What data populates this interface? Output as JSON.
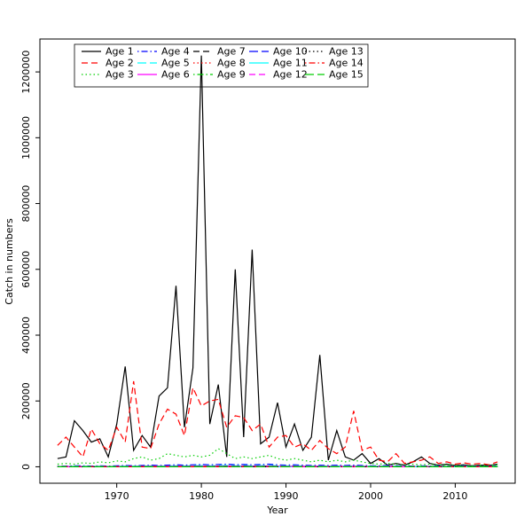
{
  "figure": {
    "background": "#ffffff"
  },
  "chart_data": {
    "type": "line",
    "title": "",
    "xlabel": "Year",
    "ylabel": "Catch in numbers",
    "xlim": [
      1963,
      2015
    ],
    "ylim": [
      0,
      1250000
    ],
    "xticks": [
      1970,
      1980,
      1990,
      2000,
      2010
    ],
    "yticks": [
      0,
      200000,
      400000,
      600000,
      800000,
      1000000,
      1200000
    ],
    "grid": false,
    "legend": {
      "position": "top-left",
      "columns": 5,
      "rows": 3
    },
    "x": [
      1963,
      1964,
      1965,
      1966,
      1967,
      1968,
      1969,
      1970,
      1971,
      1972,
      1973,
      1974,
      1975,
      1976,
      1977,
      1978,
      1979,
      1980,
      1981,
      1982,
      1983,
      1984,
      1985,
      1986,
      1987,
      1988,
      1989,
      1990,
      1991,
      1992,
      1993,
      1994,
      1995,
      1996,
      1997,
      1998,
      1999,
      2000,
      2001,
      2002,
      2003,
      2004,
      2005,
      2006,
      2007,
      2008,
      2009,
      2010,
      2011,
      2012,
      2013,
      2014,
      2015
    ],
    "series": [
      {
        "name": "Age 1",
        "color": "#000000",
        "linetype": "solid",
        "values": [
          25000,
          30000,
          140000,
          110000,
          75000,
          85000,
          30000,
          130000,
          305000,
          50000,
          95000,
          60000,
          215000,
          240000,
          550000,
          120000,
          300000,
          1250000,
          130000,
          250000,
          30000,
          600000,
          90000,
          660000,
          70000,
          90000,
          195000,
          60000,
          130000,
          50000,
          90000,
          340000,
          20000,
          110000,
          30000,
          20000,
          40000,
          10000,
          25000,
          5000,
          10000,
          5000,
          15000,
          30000,
          10000,
          5000,
          8000,
          4000,
          6000,
          3000,
          5000,
          4000,
          8000
        ]
      },
      {
        "name": "Age 2",
        "color": "#FF0000",
        "linetype": "dashed",
        "values": [
          65000,
          90000,
          60000,
          30000,
          115000,
          70000,
          50000,
          120000,
          75000,
          260000,
          60000,
          55000,
          130000,
          175000,
          160000,
          95000,
          240000,
          185000,
          200000,
          205000,
          120000,
          155000,
          150000,
          110000,
          130000,
          60000,
          90000,
          95000,
          60000,
          70000,
          50000,
          80000,
          55000,
          40000,
          60000,
          170000,
          50000,
          60000,
          20000,
          15000,
          40000,
          10000,
          15000,
          20000,
          30000,
          10000,
          15000,
          8000,
          12000,
          8000,
          10000,
          6000,
          15000
        ]
      },
      {
        "name": "Age 3",
        "color": "#00CD00",
        "linetype": "dotted",
        "values": [
          8000,
          10000,
          8000,
          12000,
          10000,
          15000,
          12000,
          18000,
          15000,
          25000,
          30000,
          20000,
          25000,
          40000,
          35000,
          30000,
          35000,
          30000,
          35000,
          55000,
          40000,
          25000,
          30000,
          25000,
          30000,
          35000,
          25000,
          20000,
          25000,
          20000,
          15000,
          20000,
          15000,
          20000,
          15000,
          20000,
          15000,
          10000,
          8000,
          10000,
          8000,
          6000,
          8000,
          6000,
          8000,
          5000,
          6000,
          4000,
          5000,
          4000,
          5000,
          4000,
          6000
        ]
      },
      {
        "name": "Age 4",
        "color": "#0000FF",
        "linetype": "dotdash",
        "values": [
          2000,
          2000,
          3000,
          3000,
          2000,
          3000,
          2000,
          3000,
          4000,
          3000,
          4000,
          5000,
          4000,
          5000,
          6000,
          5000,
          6000,
          7000,
          6000,
          7000,
          8000,
          6000,
          7000,
          6000,
          7000,
          8000,
          6000,
          5000,
          6000,
          5000,
          4000,
          5000,
          4000,
          5000,
          4000,
          5000,
          4000,
          3000,
          3000,
          4000,
          3000,
          3000,
          2000,
          3000,
          2000,
          3000,
          2000,
          2000,
          3000,
          2000,
          2000,
          2000,
          3000
        ]
      },
      {
        "name": "Age 5",
        "color": "#00FFFF",
        "linetype": "longdash",
        "values": [
          1000,
          1000,
          1500,
          1500,
          1000,
          1500,
          1000,
          1500,
          2000,
          1500,
          2000,
          2500,
          2000,
          2500,
          3000,
          2500,
          3000,
          3500,
          3000,
          3500,
          4000,
          3000,
          3500,
          3000,
          3500,
          4000,
          3000,
          2500,
          3000,
          2500,
          2000,
          2500,
          2000,
          2500,
          2000,
          2500,
          2000,
          1500,
          1500,
          2000,
          1500,
          1500,
          1000,
          1500,
          1000,
          1500,
          1000,
          1000,
          1500,
          1000,
          1000,
          1000,
          1500
        ]
      },
      {
        "name": "Age 6",
        "color": "#FF00FF",
        "linetype": "solid",
        "values": [
          800,
          800,
          1000,
          1000,
          800,
          1000,
          800,
          1000,
          1200,
          1000,
          1200,
          1500,
          1200,
          1500,
          1800,
          1500,
          1800,
          2000,
          1800,
          2000,
          2200,
          1800,
          2000,
          1800,
          2000,
          2200,
          1800,
          1500,
          1800,
          1500,
          1200,
          1500,
          1200,
          1500,
          1200,
          1500,
          1200,
          1000,
          1000,
          1200,
          1000,
          1000,
          800,
          1000,
          800,
          1000,
          800,
          800,
          1000,
          800,
          800,
          800,
          1000
        ]
      },
      {
        "name": "Age 7",
        "color": "#000000",
        "linetype": "dashed",
        "values": [
          500,
          500,
          700,
          700,
          500,
          700,
          500,
          700,
          800,
          700,
          800,
          1000,
          800,
          1000,
          1200,
          1000,
          1200,
          1400,
          1200,
          1400,
          1500,
          1200,
          1400,
          1200,
          1400,
          1500,
          1200,
          1000,
          1200,
          1000,
          800,
          1000,
          800,
          1000,
          800,
          1000,
          800,
          700,
          700,
          800,
          700,
          700,
          500,
          700,
          500,
          700,
          500,
          500,
          700,
          500,
          500,
          500,
          700
        ]
      },
      {
        "name": "Age 8",
        "color": "#FF0000",
        "linetype": "dotted",
        "values": [
          400,
          400,
          500,
          500,
          400,
          500,
          400,
          500,
          600,
          500,
          600,
          700,
          600,
          700,
          800,
          700,
          800,
          900,
          800,
          900,
          1000,
          800,
          900,
          800,
          900,
          1000,
          800,
          700,
          800,
          700,
          600,
          700,
          600,
          700,
          600,
          700,
          600,
          500,
          500,
          600,
          500,
          500,
          400,
          500,
          400,
          500,
          400,
          400,
          500,
          400,
          400,
          400,
          500
        ]
      },
      {
        "name": "Age 9",
        "color": "#00CD00",
        "linetype": "dotdash",
        "values": [
          300,
          300,
          350,
          350,
          300,
          350,
          300,
          350,
          400,
          350,
          400,
          450,
          400,
          450,
          500,
          450,
          500,
          550,
          500,
          550,
          600,
          500,
          550,
          500,
          550,
          600,
          500,
          450,
          500,
          450,
          400,
          450,
          400,
          450,
          400,
          450,
          400,
          350,
          350,
          400,
          350,
          350,
          300,
          350,
          300,
          350,
          300,
          300,
          350,
          300,
          300,
          300,
          350
        ]
      },
      {
        "name": "Age 10",
        "color": "#0000FF",
        "linetype": "longdash",
        "values": [
          200,
          200,
          250,
          250,
          200,
          250,
          200,
          250,
          300,
          250,
          300,
          350,
          300,
          350,
          400,
          350,
          400,
          450,
          400,
          450,
          500,
          400,
          450,
          400,
          450,
          500,
          400,
          350,
          400,
          350,
          300,
          350,
          300,
          350,
          300,
          350,
          300,
          250,
          250,
          300,
          250,
          250,
          200,
          250,
          200,
          250,
          200,
          200,
          250,
          200,
          200,
          200,
          250
        ]
      },
      {
        "name": "Age 11",
        "color": "#00FFFF",
        "linetype": "solid",
        "values": [
          150,
          150,
          180,
          180,
          150,
          180,
          150,
          180,
          200,
          180,
          200,
          250,
          200,
          250,
          300,
          250,
          300,
          350,
          300,
          350,
          400,
          300,
          350,
          300,
          350,
          400,
          300,
          250,
          300,
          250,
          200,
          250,
          200,
          250,
          200,
          250,
          200,
          180,
          180,
          200,
          180,
          180,
          150,
          180,
          150,
          180,
          150,
          150,
          180,
          150,
          150,
          150,
          180
        ]
      },
      {
        "name": "Age 12",
        "color": "#FF00FF",
        "linetype": "dashed",
        "values": [
          100,
          100,
          120,
          120,
          100,
          120,
          100,
          120,
          150,
          120,
          150,
          180,
          150,
          180,
          200,
          180,
          200,
          250,
          200,
          250,
          300,
          200,
          250,
          200,
          250,
          300,
          200,
          180,
          200,
          180,
          150,
          180,
          150,
          180,
          150,
          180,
          150,
          120,
          120,
          150,
          120,
          120,
          100,
          120,
          100,
          120,
          100,
          100,
          120,
          100,
          100,
          100,
          120
        ]
      },
      {
        "name": "Age 13",
        "color": "#000000",
        "linetype": "dotted",
        "values": [
          70,
          70,
          80,
          80,
          70,
          80,
          70,
          80,
          100,
          80,
          100,
          120,
          100,
          120,
          150,
          120,
          150,
          180,
          150,
          180,
          200,
          150,
          180,
          150,
          180,
          200,
          150,
          120,
          150,
          120,
          100,
          120,
          100,
          120,
          100,
          120,
          100,
          80,
          80,
          100,
          80,
          80,
          70,
          80,
          70,
          80,
          70,
          70,
          80,
          70,
          70,
          70,
          80
        ]
      },
      {
        "name": "Age 14",
        "color": "#FF0000",
        "linetype": "dotdash",
        "values": [
          40,
          40,
          50,
          50,
          40,
          50,
          40,
          50,
          60,
          50,
          60,
          80,
          60,
          80,
          100,
          80,
          100,
          120,
          100,
          120,
          150,
          100,
          120,
          100,
          120,
          150,
          100,
          80,
          100,
          80,
          60,
          80,
          60,
          80,
          60,
          80,
          60,
          50,
          50,
          60,
          50,
          50,
          40,
          50,
          40,
          50,
          40,
          40,
          50,
          40,
          40,
          40,
          50
        ]
      },
      {
        "name": "Age 15",
        "color": "#00CD00",
        "linetype": "longdash",
        "values": [
          25,
          25,
          30,
          30,
          25,
          30,
          25,
          30,
          40,
          30,
          40,
          50,
          40,
          50,
          60,
          50,
          60,
          80,
          60,
          80,
          100,
          80,
          80,
          80,
          80,
          100,
          80,
          50,
          60,
          50,
          40,
          50,
          40,
          50,
          40,
          50,
          40,
          30,
          30,
          40,
          30,
          30,
          25,
          30,
          25,
          30,
          25,
          25,
          30,
          25,
          25,
          25,
          30
        ]
      }
    ]
  }
}
